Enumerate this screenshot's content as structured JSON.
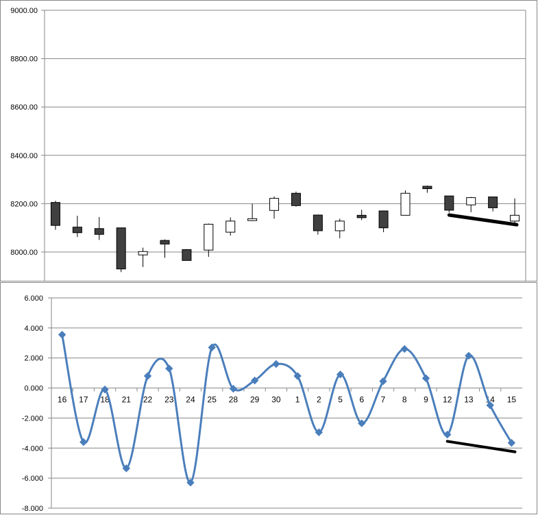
{
  "chart_data": [
    {
      "type": "candlestick",
      "ylim": [
        7880,
        9000
      ],
      "y_ticks": [
        "9000.00",
        "8800.00",
        "8600.00",
        "8400.00",
        "8200.00",
        "8000.00"
      ],
      "grid": true,
      "colors": {
        "up": "#ffffff",
        "down": "#404040",
        "outline": "#000000",
        "trendline": "#000000"
      },
      "categories": [
        "16",
        "17",
        "18",
        "21",
        "22",
        "23",
        "24",
        "25",
        "28",
        "29",
        "30",
        "1",
        "2",
        "5",
        "6",
        "7",
        "8",
        "9",
        "12",
        "13",
        "14",
        "15"
      ],
      "ohlc": [
        {
          "open": 8205,
          "high": 8212,
          "low": 8092,
          "close": 8110
        },
        {
          "open": 8103,
          "high": 8150,
          "low": 8062,
          "close": 8080
        },
        {
          "open": 8097,
          "high": 8145,
          "low": 8050,
          "close": 8073
        },
        {
          "open": 8100,
          "high": 8100,
          "low": 7917,
          "close": 7930
        },
        {
          "open": 7988,
          "high": 8018,
          "low": 7938,
          "close": 8002
        },
        {
          "open": 8048,
          "high": 8052,
          "low": 7976,
          "close": 8033
        },
        {
          "open": 8010,
          "high": 8012,
          "low": 7965,
          "close": 7965
        },
        {
          "open": 8008,
          "high": 8118,
          "low": 7980,
          "close": 8115
        },
        {
          "open": 8082,
          "high": 8143,
          "low": 8068,
          "close": 8128
        },
        {
          "open": 8130,
          "high": 8200,
          "low": 8128,
          "close": 8138
        },
        {
          "open": 8172,
          "high": 8230,
          "low": 8138,
          "close": 8222
        },
        {
          "open": 8243,
          "high": 8250,
          "low": 8188,
          "close": 8192
        },
        {
          "open": 8153,
          "high": 8155,
          "low": 8072,
          "close": 8088
        },
        {
          "open": 8088,
          "high": 8138,
          "low": 8057,
          "close": 8128
        },
        {
          "open": 8152,
          "high": 8175,
          "low": 8132,
          "close": 8142
        },
        {
          "open": 8170,
          "high": 8170,
          "low": 8082,
          "close": 8100
        },
        {
          "open": 8152,
          "high": 8255,
          "low": 8152,
          "close": 8243
        },
        {
          "open": 8272,
          "high": 8275,
          "low": 8245,
          "close": 8262
        },
        {
          "open": 8232,
          "high": 8232,
          "low": 8163,
          "close": 8173
        },
        {
          "open": 8195,
          "high": 8228,
          "low": 8165,
          "close": 8225
        },
        {
          "open": 8228,
          "high": 8228,
          "low": 8168,
          "close": 8183
        },
        {
          "open": 8128,
          "high": 8222,
          "low": 8120,
          "close": 8152
        }
      ],
      "trendline": {
        "from_category": "12",
        "from_value": 8153,
        "to_category": "15",
        "to_value": 8113
      }
    },
    {
      "type": "line",
      "smoothed": true,
      "marker": "diamond",
      "ylim": [
        -8,
        6
      ],
      "y_ticks": [
        "6.000",
        "4.000",
        "2.000",
        "0.000",
        "-2.000",
        "-4.000",
        "-6.000",
        "-8.000"
      ],
      "grid": true,
      "colors": {
        "line": "#4a7ebb",
        "marker": "#4a7ebb",
        "trendline": "#000000"
      },
      "categories": [
        "16",
        "17",
        "18",
        "21",
        "22",
        "23",
        "24",
        "25",
        "28",
        "29",
        "30",
        "1",
        "2",
        "5",
        "6",
        "7",
        "8",
        "9",
        "12",
        "13",
        "14",
        "15"
      ],
      "values": [
        3.55,
        -3.6,
        -0.1,
        -5.35,
        0.8,
        1.3,
        -6.3,
        2.7,
        -0.05,
        0.5,
        1.6,
        0.8,
        -2.95,
        0.9,
        -2.35,
        0.45,
        2.6,
        0.65,
        -3.1,
        2.15,
        -1.15,
        -3.65
      ],
      "trendline": {
        "from_category": "12",
        "from_value": -3.55,
        "to_category": "15",
        "to_value": -4.25
      }
    }
  ]
}
